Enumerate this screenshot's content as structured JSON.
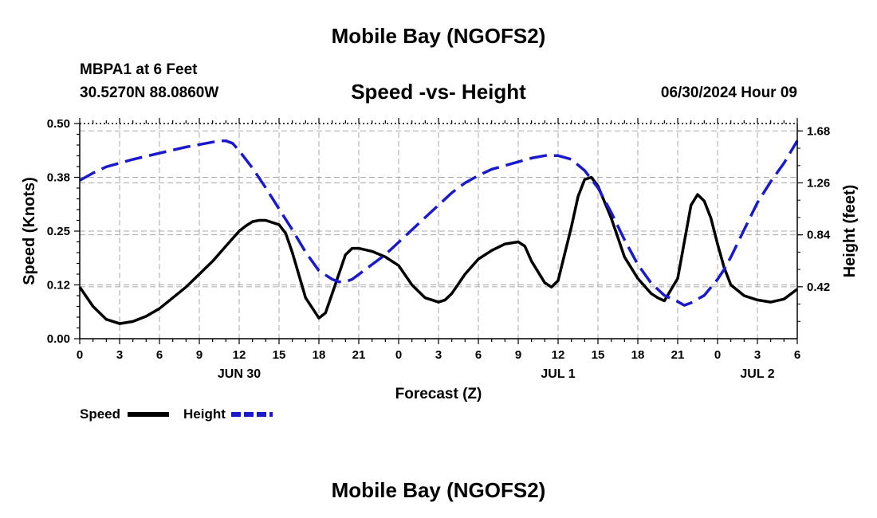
{
  "page": {
    "title_top": "Mobile Bay (NGOFS2)",
    "title_bottom": "Mobile Bay (NGOFS2)",
    "station": "MBPA1 at 6 Feet",
    "coords": "30.5270N  88.0860W",
    "subtitle": "Speed -vs- Height",
    "timestamp": "06/30/2024 Hour 09"
  },
  "chart_data": {
    "type": "line",
    "title": "Speed -vs- Height",
    "xlabel": "Forecast (Z)",
    "ylabel": "Speed (Knots)",
    "y2label": "Height (feet)",
    "xlim": [
      0,
      54
    ],
    "ylim": [
      0,
      0.5
    ],
    "y2lim": [
      0,
      1.74
    ],
    "x_ticks": [
      0,
      3,
      6,
      9,
      12,
      15,
      18,
      21,
      24,
      27,
      30,
      33,
      36,
      39,
      42,
      45,
      48,
      51,
      54
    ],
    "x_tick_labels": [
      "0",
      "3",
      "6",
      "9",
      "12",
      "15",
      "18",
      "21",
      "0",
      "3",
      "6",
      "9",
      "12",
      "15",
      "18",
      "21",
      "0",
      "3",
      "6"
    ],
    "y_ticks": [
      0,
      0.125,
      0.25,
      0.375,
      0.5
    ],
    "y_tick_labels": [
      "0.00",
      "0.12",
      "0.25",
      "0.38",
      "0.50"
    ],
    "y2_ticks": [
      0.42,
      0.84,
      1.26,
      1.68
    ],
    "y2_tick_labels": [
      "0.42",
      "0.84",
      "1.26",
      "1.68"
    ],
    "date_labels": [
      {
        "x": 12,
        "label": "JUN 30"
      },
      {
        "x": 36,
        "label": "JUL 1"
      },
      {
        "x": 51,
        "label": "JUL 2"
      }
    ],
    "grid": true,
    "legend_position": "bottom-left",
    "series": [
      {
        "name": "Speed",
        "axis": "left",
        "color": "#000000",
        "dash": "solid",
        "x": [
          0,
          1,
          2,
          3,
          4,
          5,
          6,
          7,
          8,
          9,
          10,
          11,
          12,
          12.5,
          13,
          13.5,
          14,
          15,
          15.5,
          16,
          17,
          18,
          18.5,
          19,
          20,
          20.5,
          21,
          22,
          23,
          24,
          25,
          26,
          27,
          27.5,
          28,
          29,
          30,
          31,
          32,
          33,
          33.5,
          34,
          35,
          35.5,
          36,
          37,
          37.5,
          38,
          38.5,
          39,
          40,
          41,
          42,
          43,
          43.5,
          44,
          45,
          46,
          46.5,
          47,
          47.5,
          48,
          48.5,
          49,
          50,
          51,
          52,
          53,
          54
        ],
        "values": [
          0.12,
          0.075,
          0.045,
          0.035,
          0.04,
          0.052,
          0.07,
          0.095,
          0.12,
          0.15,
          0.18,
          0.215,
          0.25,
          0.262,
          0.272,
          0.275,
          0.275,
          0.265,
          0.245,
          0.2,
          0.095,
          0.048,
          0.06,
          0.105,
          0.195,
          0.21,
          0.21,
          0.203,
          0.19,
          0.17,
          0.125,
          0.095,
          0.085,
          0.09,
          0.105,
          0.15,
          0.185,
          0.205,
          0.22,
          0.225,
          0.215,
          0.18,
          0.13,
          0.12,
          0.135,
          0.26,
          0.33,
          0.37,
          0.375,
          0.355,
          0.28,
          0.19,
          0.14,
          0.105,
          0.095,
          0.088,
          0.14,
          0.31,
          0.335,
          0.32,
          0.28,
          0.22,
          0.165,
          0.125,
          0.1,
          0.09,
          0.085,
          0.092,
          0.115
        ]
      },
      {
        "name": "Height",
        "axis": "right",
        "color": "#1a1acc",
        "dash": "dashed",
        "x": [
          0,
          1,
          2,
          3,
          4,
          6,
          8,
          10,
          10.5,
          11,
          11.5,
          12,
          13,
          14,
          15,
          16,
          17,
          18,
          19,
          19.5,
          20,
          20.5,
          21,
          22,
          23,
          24,
          25,
          26,
          27,
          28,
          29,
          30,
          31,
          32,
          33,
          34,
          35,
          35.5,
          36,
          37,
          38,
          39,
          40,
          41,
          42,
          43,
          44,
          45,
          45.5,
          46,
          47,
          48,
          48.5,
          49,
          50,
          51,
          52,
          53,
          54
        ],
        "values": [
          1.28,
          1.34,
          1.39,
          1.42,
          1.45,
          1.5,
          1.55,
          1.59,
          1.6,
          1.6,
          1.58,
          1.52,
          1.38,
          1.22,
          1.05,
          0.88,
          0.7,
          0.55,
          0.48,
          0.46,
          0.46,
          0.48,
          0.52,
          0.6,
          0.68,
          0.78,
          0.88,
          0.98,
          1.08,
          1.18,
          1.26,
          1.32,
          1.37,
          1.4,
          1.43,
          1.46,
          1.48,
          1.48,
          1.48,
          1.45,
          1.36,
          1.22,
          1.02,
          0.8,
          0.6,
          0.45,
          0.35,
          0.3,
          0.27,
          0.29,
          0.35,
          0.48,
          0.56,
          0.66,
          0.88,
          1.1,
          1.27,
          1.42,
          1.6
        ]
      }
    ]
  }
}
